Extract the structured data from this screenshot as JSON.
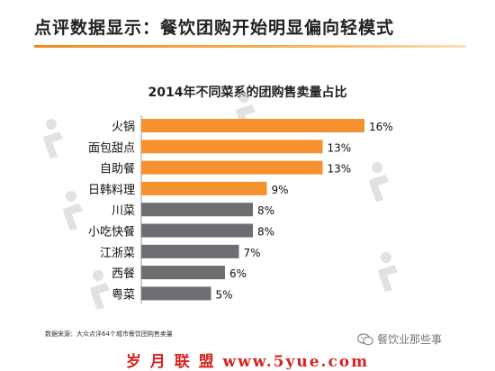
{
  "page_title": "点评数据显示：餐饮团购开始明显偏向轻模式",
  "source_note": "数据来源：大众点评64个城市餐饮团购售卖量",
  "wechat_label": "餐饮业那些事",
  "footer_text": "岁 月 联 盟   www.5yue.com",
  "colors": {
    "orange": "#f5922f",
    "gray": "#6d6e71",
    "accent": "#f08a1c",
    "footer_red": "#d6231f"
  },
  "icons": [
    "wechat-icon",
    "dianping-watermark-icon"
  ],
  "chart_data": {
    "type": "bar",
    "orientation": "horizontal",
    "title": "2014年不同菜系的团购售卖量占比",
    "categories": [
      "火锅",
      "面包甜点",
      "自助餐",
      "日韩料理",
      "川菜",
      "小吃快餐",
      "江浙菜",
      "西餐",
      "粤菜"
    ],
    "values": [
      16,
      13,
      13,
      9,
      8,
      8,
      7,
      6,
      5
    ],
    "labels": [
      "16%",
      "13%",
      "13%",
      "9%",
      "8%",
      "8%",
      "7%",
      "6%",
      "5%"
    ],
    "bar_colors": [
      "#f5922f",
      "#f5922f",
      "#f5922f",
      "#f5922f",
      "#6d6e71",
      "#6d6e71",
      "#6d6e71",
      "#6d6e71",
      "#6d6e71"
    ],
    "unit": "%",
    "xlim": [
      0,
      16
    ],
    "grid": false,
    "legend": "none"
  }
}
